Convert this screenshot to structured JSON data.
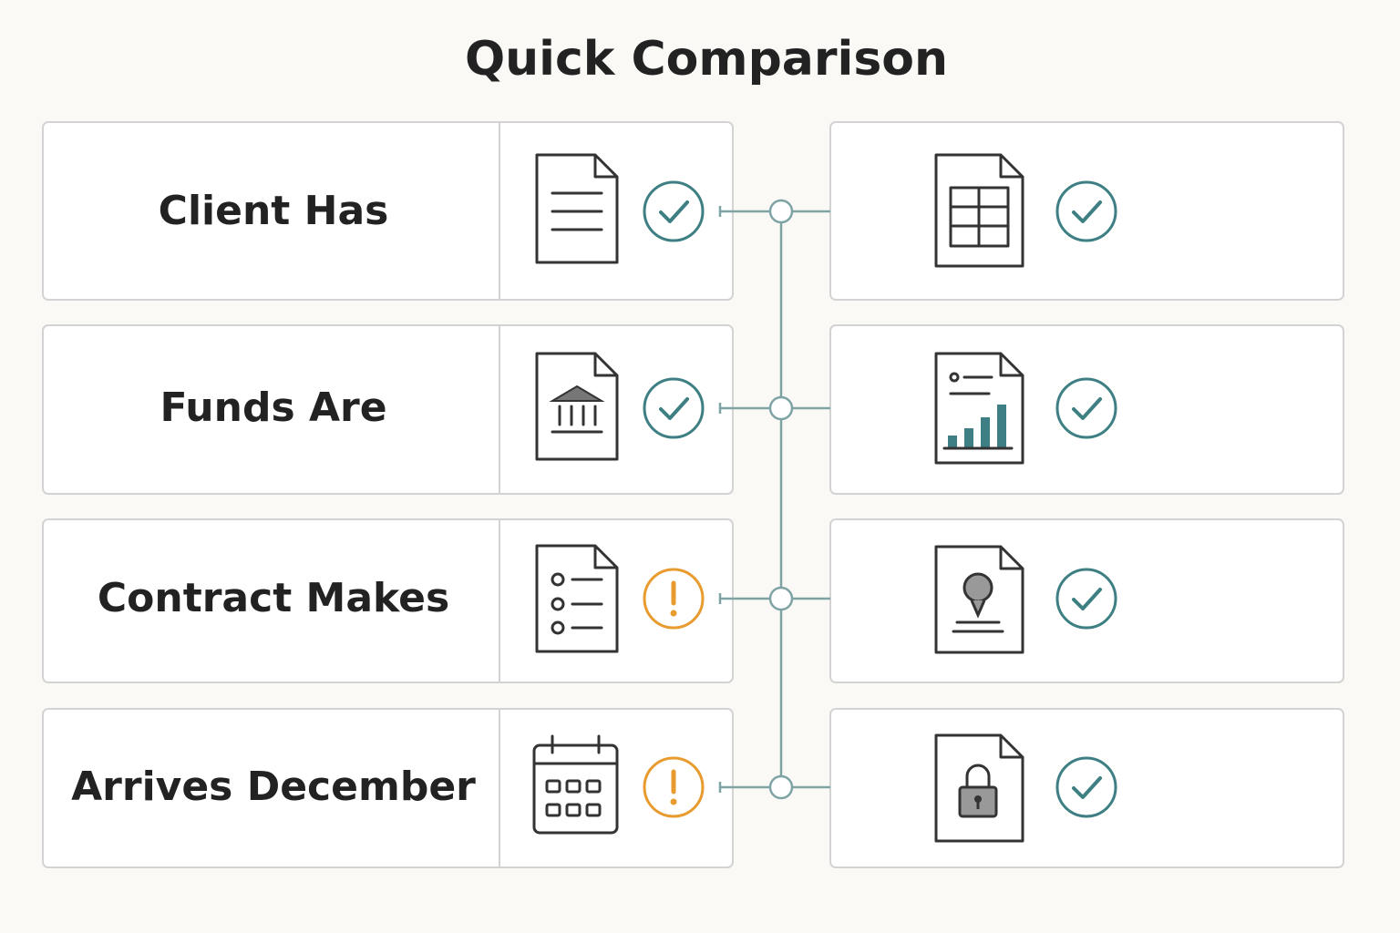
{
  "title": "Quick Comparison",
  "rows": [
    {
      "label": "Client Has"
    },
    {
      "label": "Funds Are"
    },
    {
      "label": "Contract Makes"
    },
    {
      "label": "Arrives December"
    }
  ]
}
